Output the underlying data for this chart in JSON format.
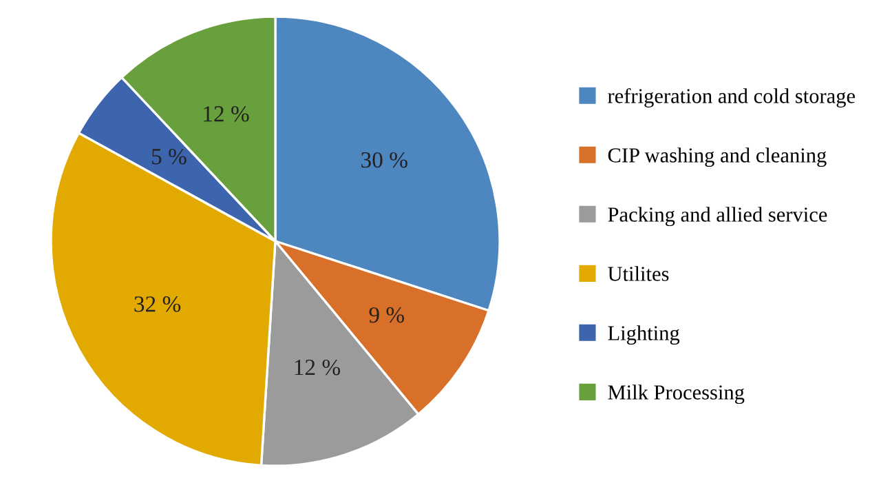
{
  "chart_data": {
    "type": "pie",
    "categories": [
      "refrigeration and cold storage",
      "CIP washing and cleaning",
      "Packing and allied service",
      "Utilites",
      "Lighting",
      "Milk Processing"
    ],
    "values": [
      30,
      9,
      12,
      32,
      5,
      12
    ],
    "value_labels": [
      "30 %",
      "9 %",
      "12 %",
      "32 %",
      "5 %",
      "12 %"
    ],
    "colors": [
      "#4e86c0",
      "#d8702a",
      "#9b9b9b",
      "#e2aa00",
      "#3c65ae",
      "#67a03c"
    ],
    "legend": "right"
  }
}
